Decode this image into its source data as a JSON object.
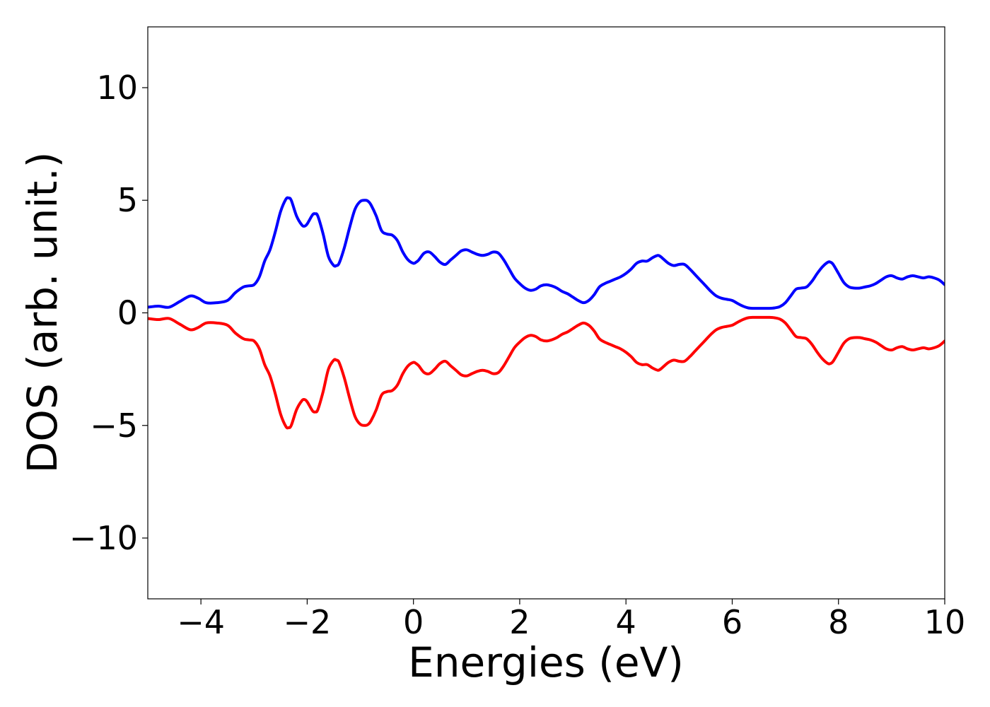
{
  "chart_data": {
    "type": "line",
    "title": "",
    "xlabel": "Energies (eV)",
    "ylabel": "DOS (arb. unit.)",
    "xlim": [
      -5,
      10
    ],
    "ylim": [
      -12.7,
      12.7
    ],
    "x_ticks": [
      -4,
      -2,
      0,
      2,
      4,
      6,
      8,
      10
    ],
    "x_tick_labels": [
      "−4",
      "−2",
      "0",
      "2",
      "4",
      "6",
      "8",
      "10"
    ],
    "y_ticks": [
      -10,
      -5,
      0,
      5,
      10
    ],
    "y_tick_labels": [
      "−10",
      "−5",
      "0",
      "5",
      "10"
    ],
    "grid": false,
    "legend": "none",
    "x": [
      -5.0,
      -4.8,
      -4.6,
      -4.4,
      -4.2,
      -4.05,
      -3.9,
      -3.7,
      -3.5,
      -3.35,
      -3.2,
      -3.1,
      -3.0,
      -2.9,
      -2.8,
      -2.7,
      -2.6,
      -2.5,
      -2.4,
      -2.35,
      -2.3,
      -2.2,
      -2.1,
      -2.05,
      -2.0,
      -1.9,
      -1.85,
      -1.8,
      -1.7,
      -1.6,
      -1.5,
      -1.45,
      -1.4,
      -1.3,
      -1.2,
      -1.1,
      -1.0,
      -0.9,
      -0.85,
      -0.8,
      -0.7,
      -0.6,
      -0.5,
      -0.4,
      -0.3,
      -0.2,
      -0.1,
      0.0,
      0.05,
      0.1,
      0.2,
      0.3,
      0.4,
      0.5,
      0.6,
      0.7,
      0.8,
      0.9,
      1.0,
      1.1,
      1.2,
      1.3,
      1.4,
      1.5,
      1.6,
      1.7,
      1.8,
      1.9,
      2.0,
      2.1,
      2.2,
      2.3,
      2.4,
      2.5,
      2.6,
      2.7,
      2.8,
      2.9,
      3.0,
      3.1,
      3.2,
      3.3,
      3.4,
      3.5,
      3.6,
      3.7,
      3.8,
      3.9,
      4.0,
      4.1,
      4.2,
      4.3,
      4.4,
      4.5,
      4.6,
      4.65,
      4.7,
      4.8,
      4.9,
      5.0,
      5.1,
      5.2,
      5.3,
      5.4,
      5.5,
      5.6,
      5.7,
      5.8,
      5.9,
      6.0,
      6.1,
      6.2,
      6.3,
      6.4,
      6.5,
      6.6,
      6.7,
      6.8,
      6.9,
      7.0,
      7.1,
      7.2,
      7.3,
      7.4,
      7.5,
      7.6,
      7.7,
      7.8,
      7.85,
      7.9,
      8.0,
      8.1,
      8.2,
      8.3,
      8.4,
      8.5,
      8.6,
      8.7,
      8.8,
      8.9,
      9.0,
      9.1,
      9.2,
      9.3,
      9.4,
      9.5,
      9.6,
      9.7,
      9.8,
      9.9,
      10.0
    ],
    "series": [
      {
        "color": "#0000ff",
        "values": [
          0.25,
          0.3,
          0.25,
          0.5,
          0.75,
          0.65,
          0.45,
          0.45,
          0.55,
          0.9,
          1.15,
          1.2,
          1.25,
          1.6,
          2.3,
          2.8,
          3.6,
          4.5,
          5.05,
          5.1,
          5.0,
          4.3,
          3.9,
          3.85,
          3.95,
          4.35,
          4.4,
          4.3,
          3.5,
          2.5,
          2.1,
          2.1,
          2.2,
          2.9,
          3.8,
          4.6,
          4.95,
          5.0,
          4.95,
          4.8,
          4.3,
          3.65,
          3.5,
          3.45,
          3.2,
          2.7,
          2.35,
          2.2,
          2.25,
          2.35,
          2.65,
          2.7,
          2.5,
          2.25,
          2.15,
          2.35,
          2.55,
          2.75,
          2.8,
          2.7,
          2.6,
          2.55,
          2.6,
          2.7,
          2.65,
          2.35,
          1.95,
          1.55,
          1.3,
          1.1,
          1.0,
          1.05,
          1.2,
          1.25,
          1.2,
          1.1,
          0.95,
          0.85,
          0.7,
          0.55,
          0.45,
          0.55,
          0.8,
          1.15,
          1.3,
          1.4,
          1.5,
          1.6,
          1.75,
          1.95,
          2.2,
          2.3,
          2.3,
          2.45,
          2.55,
          2.5,
          2.4,
          2.2,
          2.1,
          2.15,
          2.15,
          1.95,
          1.7,
          1.45,
          1.2,
          0.95,
          0.75,
          0.65,
          0.6,
          0.55,
          0.42,
          0.3,
          0.22,
          0.2,
          0.2,
          0.2,
          0.2,
          0.22,
          0.28,
          0.45,
          0.75,
          1.05,
          1.1,
          1.15,
          1.4,
          1.75,
          2.05,
          2.25,
          2.25,
          2.15,
          1.75,
          1.35,
          1.15,
          1.1,
          1.1,
          1.15,
          1.2,
          1.3,
          1.45,
          1.6,
          1.65,
          1.55,
          1.5,
          1.6,
          1.65,
          1.6,
          1.55,
          1.6,
          1.55,
          1.45,
          1.25
        ]
      },
      {
        "color": "#ff0000",
        "values": [
          -0.25,
          -0.3,
          -0.25,
          -0.5,
          -0.75,
          -0.65,
          -0.45,
          -0.45,
          -0.55,
          -0.9,
          -1.15,
          -1.2,
          -1.25,
          -1.6,
          -2.3,
          -2.8,
          -3.6,
          -4.5,
          -5.05,
          -5.1,
          -5.0,
          -4.3,
          -3.9,
          -3.85,
          -3.95,
          -4.35,
          -4.4,
          -4.3,
          -3.5,
          -2.5,
          -2.1,
          -2.1,
          -2.2,
          -2.9,
          -3.8,
          -4.6,
          -4.95,
          -5.0,
          -4.95,
          -4.8,
          -4.3,
          -3.65,
          -3.5,
          -3.45,
          -3.2,
          -2.7,
          -2.35,
          -2.2,
          -2.25,
          -2.35,
          -2.65,
          -2.7,
          -2.5,
          -2.25,
          -2.15,
          -2.35,
          -2.55,
          -2.75,
          -2.8,
          -2.7,
          -2.6,
          -2.55,
          -2.6,
          -2.7,
          -2.65,
          -2.35,
          -1.95,
          -1.55,
          -1.3,
          -1.1,
          -1.0,
          -1.05,
          -1.2,
          -1.25,
          -1.2,
          -1.1,
          -0.95,
          -0.85,
          -0.7,
          -0.55,
          -0.45,
          -0.55,
          -0.8,
          -1.15,
          -1.3,
          -1.4,
          -1.5,
          -1.6,
          -1.75,
          -1.95,
          -2.2,
          -2.3,
          -2.3,
          -2.45,
          -2.55,
          -2.5,
          -2.4,
          -2.2,
          -2.1,
          -2.15,
          -2.15,
          -1.95,
          -1.7,
          -1.45,
          -1.2,
          -0.95,
          -0.75,
          -0.65,
          -0.6,
          -0.55,
          -0.42,
          -0.3,
          -0.22,
          -0.2,
          -0.2,
          -0.2,
          -0.2,
          -0.22,
          -0.28,
          -0.45,
          -0.75,
          -1.05,
          -1.1,
          -1.15,
          -1.4,
          -1.75,
          -2.05,
          -2.25,
          -2.25,
          -2.15,
          -1.75,
          -1.35,
          -1.15,
          -1.1,
          -1.1,
          -1.15,
          -1.2,
          -1.3,
          -1.45,
          -1.6,
          -1.65,
          -1.55,
          -1.5,
          -1.6,
          -1.65,
          -1.6,
          -1.55,
          -1.6,
          -1.55,
          -1.45,
          -1.25
        ]
      }
    ]
  }
}
